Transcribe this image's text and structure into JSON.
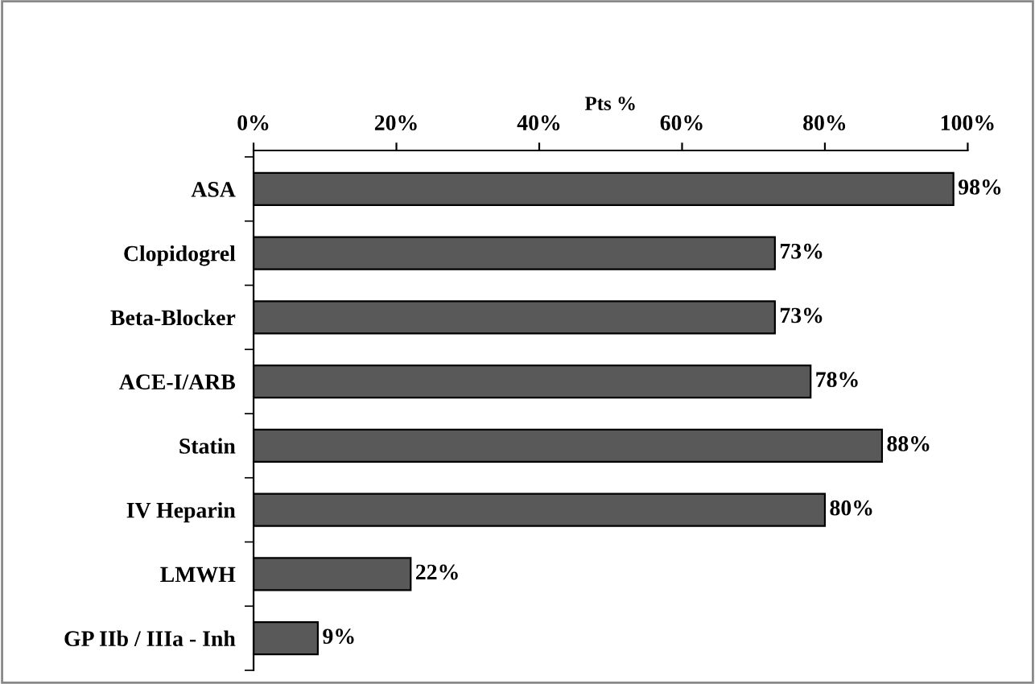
{
  "chart_data": {
    "type": "bar",
    "orientation": "horizontal",
    "xlabel": "Pts %",
    "categories": [
      "ASA",
      "Clopidogrel",
      "Beta-Blocker",
      "ACE-I/ARB",
      "Statin",
      "IV Heparin",
      "LMWH",
      "GP IIb / IIIa - Inh"
    ],
    "values": [
      98,
      73,
      73,
      78,
      88,
      80,
      22,
      9
    ],
    "value_labels": [
      "98%",
      "73%",
      "73%",
      "78%",
      "88%",
      "80%",
      "22%",
      "9%"
    ],
    "color": "#595959",
    "xlim": [
      0,
      100
    ],
    "xticks": [
      {
        "value": 0,
        "label": "0%"
      },
      {
        "value": 20,
        "label": "20%"
      },
      {
        "value": 40,
        "label": "40%"
      },
      {
        "value": 60,
        "label": "60%"
      },
      {
        "value": 80,
        "label": "80%"
      },
      {
        "value": 100,
        "label": "100%"
      }
    ],
    "grid": false,
    "legend": false
  }
}
